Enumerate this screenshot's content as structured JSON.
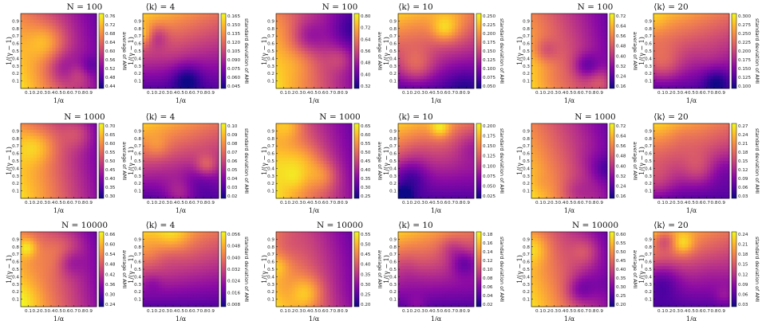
{
  "figure": {
    "rows": [
      {
        "N_title": "N = 100",
        "panels": [
          {
            "k_title": "⟨k⟩ = 4",
            "mean_ticks": [
              "0.76",
              "0.72",
              "0.68",
              "0.64",
              "0.60",
              "0.56",
              "0.52",
              "0.48",
              "0.44"
            ],
            "std_ticks": [
              "0.165",
              "0.150",
              "0.135",
              "0.120",
              "0.105",
              "0.090",
              "0.075",
              "0.060",
              "0.045"
            ]
          },
          {
            "k_title": "⟨k⟩ = 10",
            "mean_ticks": [
              "0.80",
              "0.72",
              "0.64",
              "0.56",
              "0.48",
              "0.40",
              "0.32"
            ],
            "std_ticks": [
              "0.250",
              "0.225",
              "0.200",
              "0.175",
              "0.150",
              "0.125",
              "0.100",
              "0.075",
              "0.050"
            ]
          },
          {
            "k_title": "⟨k⟩ = 20",
            "mean_ticks": [
              "0.72",
              "0.64",
              "0.56",
              "0.48",
              "0.40",
              "0.32",
              "0.24",
              "0.16"
            ],
            "std_ticks": [
              "0.300",
              "0.275",
              "0.250",
              "0.225",
              "0.200",
              "0.175",
              "0.150",
              "0.125",
              "0.100"
            ]
          }
        ]
      },
      {
        "N_title": "N = 1000",
        "panels": [
          {
            "k_title": "⟨k⟩ = 4",
            "mean_ticks": [
              "0.70",
              "0.65",
              "0.60",
              "0.55",
              "0.50",
              "0.45",
              "0.40",
              "0.35",
              "0.30"
            ],
            "std_ticks": [
              "0.10",
              "0.09",
              "0.08",
              "0.07",
              "0.06",
              "0.05",
              "0.04",
              "0.03",
              "0.02"
            ]
          },
          {
            "k_title": "⟨k⟩ = 10",
            "mean_ticks": [
              "0.65",
              "0.60",
              "0.55",
              "0.50",
              "0.45",
              "0.40",
              "0.35",
              "0.30",
              "0.25"
            ],
            "std_ticks": [
              "0.200",
              "0.175",
              "0.150",
              "0.125",
              "0.100",
              "0.075",
              "0.050",
              "0.025"
            ]
          },
          {
            "k_title": "⟨k⟩ = 20",
            "mean_ticks": [
              "0.72",
              "0.64",
              "0.56",
              "0.48",
              "0.40",
              "0.32",
              "0.24",
              "0.16"
            ],
            "std_ticks": [
              "0.27",
              "0.24",
              "0.21",
              "0.18",
              "0.15",
              "0.12",
              "0.09",
              "0.06",
              "0.03"
            ]
          }
        ]
      },
      {
        "N_title": "N = 10000",
        "panels": [
          {
            "k_title": "⟨k⟩ = 4",
            "mean_ticks": [
              "0.66",
              "0.60",
              "0.54",
              "0.48",
              "0.42",
              "0.36",
              "0.30",
              "0.24"
            ],
            "std_ticks": [
              "0.056",
              "0.048",
              "0.040",
              "0.032",
              "0.024",
              "0.016",
              "0.008"
            ]
          },
          {
            "k_title": "⟨k⟩ = 10",
            "mean_ticks": [
              "0.55",
              "0.50",
              "0.45",
              "0.40",
              "0.35",
              "0.30",
              "0.25",
              "0.20"
            ],
            "std_ticks": [
              "0.18",
              "0.16",
              "0.14",
              "0.12",
              "0.10",
              "0.08",
              "0.06",
              "0.04",
              "0.02"
            ]
          },
          {
            "k_title": "⟨k⟩ = 20",
            "mean_ticks": [
              "0.60",
              "0.55",
              "0.50",
              "0.45",
              "0.40",
              "0.35",
              "0.30",
              "0.25",
              "0.20"
            ],
            "std_ticks": [
              "0.24",
              "0.21",
              "0.18",
              "0.15",
              "0.12",
              "0.09",
              "0.06",
              "0.03"
            ]
          }
        ]
      }
    ],
    "mean_cbar_label": "average of AMI",
    "std_cbar_label": "standard deviation of AMI",
    "x_label": "1/α",
    "y_label": "1/(γ − 1)",
    "x_ticks": [
      "0.1",
      "0.2",
      "0.3",
      "0.4",
      "0.5",
      "0.6",
      "0.7",
      "0.8",
      "0.9"
    ],
    "y_ticks": [
      "0.9",
      "0.8",
      "0.7",
      "0.6",
      "0.5",
      "0.4",
      "0.3",
      "0.2",
      "0.1"
    ],
    "colormap": [
      "#0d0887",
      "#5302a3",
      "#8b0aa5",
      "#b83289",
      "#db5c68",
      "#f48849",
      "#febd2a",
      "#f0f921"
    ]
  },
  "chart_data": {
    "type": "heatmap",
    "description_grid": "each panel pair: left = average of AMI, right = standard deviation of AMI, over grid of 1/alpha (x, 0.1–0.9) and 1/(gamma-1) (y, 0.1–0.9)",
    "x": [
      0.1,
      0.2,
      0.3,
      0.4,
      0.5,
      0.6,
      0.7,
      0.8,
      0.9
    ],
    "y": [
      0.1,
      0.2,
      0.3,
      0.4,
      0.5,
      0.6,
      0.7,
      0.8,
      0.9
    ],
    "xlabel": "1/α",
    "ylabel": "1/(γ − 1)",
    "panels": [
      {
        "N": 100,
        "k": 4,
        "mean_range": [
          0.42,
          0.77
        ],
        "std_range": [
          0.045,
          0.17
        ]
      },
      {
        "N": 100,
        "k": 10,
        "mean_range": [
          0.3,
          0.82
        ],
        "std_range": [
          0.05,
          0.26
        ]
      },
      {
        "N": 100,
        "k": 20,
        "mean_range": [
          0.14,
          0.73
        ],
        "std_range": [
          0.1,
          0.31
        ]
      },
      {
        "N": 1000,
        "k": 4,
        "mean_range": [
          0.28,
          0.7
        ],
        "std_range": [
          0.015,
          0.105
        ]
      },
      {
        "N": 1000,
        "k": 10,
        "mean_range": [
          0.25,
          0.67
        ],
        "std_range": [
          0.02,
          0.21
        ]
      },
      {
        "N": 1000,
        "k": 20,
        "mean_range": [
          0.15,
          0.72
        ],
        "std_range": [
          0.01,
          0.28
        ]
      },
      {
        "N": 10000,
        "k": 4,
        "mean_range": [
          0.22,
          0.67
        ],
        "std_range": [
          0.004,
          0.058
        ]
      },
      {
        "N": 10000,
        "k": 10,
        "mean_range": [
          0.18,
          0.57
        ],
        "std_range": [
          0.01,
          0.18
        ]
      },
      {
        "N": 10000,
        "k": 20,
        "mean_range": [
          0.19,
          0.62
        ],
        "std_range": [
          0.01,
          0.25
        ]
      }
    ]
  }
}
